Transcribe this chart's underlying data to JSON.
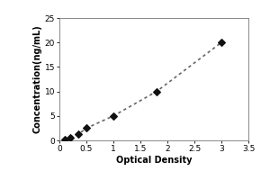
{
  "x_data": [
    0.1,
    0.2,
    0.35,
    0.5,
    1.0,
    1.8,
    3.0
  ],
  "y_data": [
    0.16,
    0.625,
    1.25,
    2.5,
    5.0,
    10.0,
    20.0
  ],
  "xlabel": "Optical Density",
  "ylabel": "Concentration(ng/mL)",
  "xlim": [
    0,
    3.5
  ],
  "ylim": [
    0,
    25
  ],
  "xticks": [
    0,
    0.5,
    1.0,
    1.5,
    2.0,
    2.5,
    3.0,
    3.5
  ],
  "xtick_labels": [
    "0",
    "0.5",
    "1",
    "1.5",
    "2",
    "2.5",
    "3",
    "3.5"
  ],
  "yticks": [
    0,
    5,
    10,
    15,
    20,
    25
  ],
  "line_color": "#666666",
  "marker_color": "#111111",
  "bg_color": "#ffffff",
  "border_color": "#aaaaaa",
  "line_width": 1.2,
  "marker_size": 5,
  "label_fontsize": 7,
  "tick_fontsize": 6.5
}
